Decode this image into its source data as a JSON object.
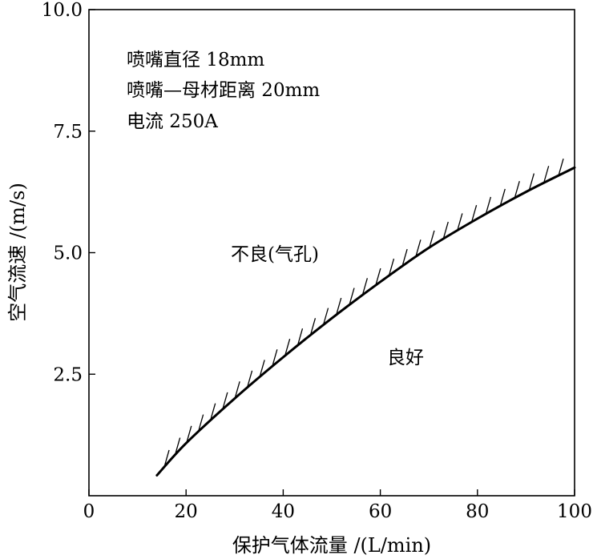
{
  "chart_data": {
    "type": "line",
    "xlabel": "保护气体流量 /(L/min)",
    "ylabel": "空气流速 /(m/s)",
    "xlim": [
      0,
      100
    ],
    "ylim": [
      0,
      10
    ],
    "x_ticks": [
      0,
      20,
      40,
      60,
      80,
      100
    ],
    "x_tick_labels": [
      "0",
      "20",
      "40",
      "60",
      "80",
      "100"
    ],
    "y_ticks": [
      2.5,
      5.0,
      7.5,
      10.0
    ],
    "y_tick_labels": [
      "2.5",
      "5.0",
      "7.5",
      "10.0"
    ],
    "grid": false,
    "series": [
      {
        "hatched_side": "upper-left",
        "x": [
          14,
          20,
          30,
          40,
          50,
          60,
          70,
          80,
          90,
          100
        ],
        "y": [
          0.42,
          1.08,
          2.0,
          2.85,
          3.65,
          4.4,
          5.1,
          5.7,
          6.25,
          6.75
        ]
      }
    ],
    "annotations": [
      {
        "id": "nozzle-diameter",
        "text": "喷嘴直径  18mm"
      },
      {
        "id": "nozzle-distance",
        "text": "喷嘴—母材距离  20mm"
      },
      {
        "id": "current",
        "text": "电流  250A"
      },
      {
        "id": "region-bad",
        "text": "不良(气孔)"
      },
      {
        "id": "region-good",
        "text": "良好"
      }
    ]
  }
}
